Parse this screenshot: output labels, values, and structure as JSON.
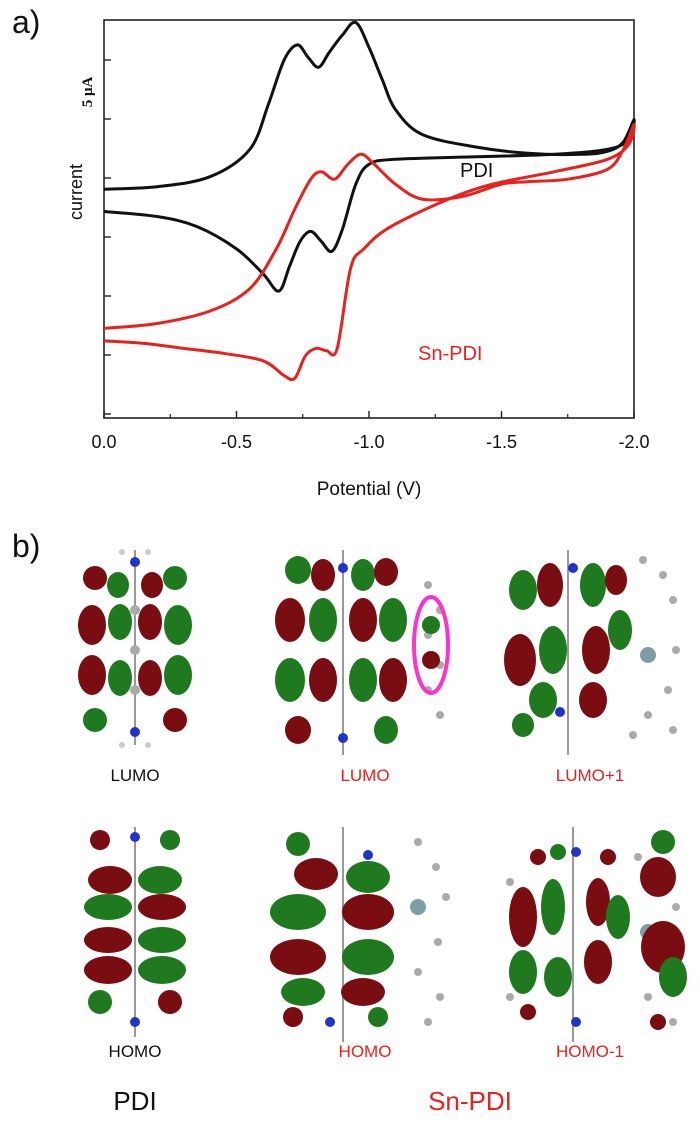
{
  "panel_a_label": "a)",
  "panel_b_label": "b)",
  "colors": {
    "pdi": "#111111",
    "snpdi": "#e8211d",
    "lobe_red": "#7a0d12",
    "lobe_green": "#1f7a1f",
    "atom_grey": "#9a9a9a",
    "nitrogen": "#2233cc",
    "tin": "#7f9ea3",
    "highlight": "#ff33cc"
  },
  "chart_data": {
    "type": "line",
    "title": "",
    "xlabel": "Potential (V)",
    "ylabel": "current",
    "scale_bar_label": "5 μA",
    "xlim": [
      0.0,
      -2.0
    ],
    "x_ticks": [
      "0.0",
      "-0.5",
      "-1.0",
      "-1.5",
      "-2.0"
    ],
    "x_tick_values": [
      0.0,
      -0.5,
      -1.0,
      -1.5,
      -2.0
    ],
    "ylim": [
      -4.6,
      3.4
    ],
    "series": [
      {
        "name": "PDI",
        "label": "PDI",
        "color": "#111111",
        "x": [
          0.0,
          -0.2,
          -0.4,
          -0.55,
          -0.62,
          -0.68,
          -0.73,
          -0.77,
          -0.81,
          -0.85,
          -0.9,
          -0.95,
          -1.0,
          -1.05,
          -1.1,
          -1.2,
          -1.4,
          -1.6,
          -1.8,
          -1.9,
          -1.96,
          -2.0,
          -1.98,
          -1.9,
          -1.7,
          -1.4,
          -1.1,
          -1.0,
          -0.95,
          -0.9,
          -0.86,
          -0.82,
          -0.78,
          -0.74,
          -0.7,
          -0.66,
          -0.6,
          -0.5,
          -0.35,
          -0.2,
          0.0
        ],
        "y": [
          0.0,
          0.05,
          0.25,
          0.8,
          1.7,
          2.6,
          2.9,
          2.65,
          2.45,
          2.75,
          3.1,
          3.35,
          2.85,
          2.2,
          1.6,
          1.1,
          0.85,
          0.72,
          0.7,
          0.76,
          0.95,
          1.4,
          1.0,
          0.8,
          0.7,
          0.65,
          0.6,
          0.5,
          0.1,
          -0.8,
          -1.25,
          -1.05,
          -0.85,
          -1.05,
          -1.55,
          -2.05,
          -1.7,
          -1.2,
          -0.75,
          -0.55,
          -0.45
        ]
      },
      {
        "name": "Sn-PDI",
        "label": "Sn-PDI",
        "color": "#e8211d",
        "x": [
          0.0,
          -0.2,
          -0.4,
          -0.55,
          -0.65,
          -0.72,
          -0.78,
          -0.82,
          -0.87,
          -0.92,
          -0.97,
          -1.02,
          -1.1,
          -1.2,
          -1.35,
          -1.5,
          -1.6,
          -1.75,
          -1.9,
          -1.96,
          -2.0,
          -1.98,
          -1.9,
          -1.7,
          -1.4,
          -1.1,
          -0.98,
          -0.93,
          -0.88,
          -0.84,
          -0.8,
          -0.76,
          -0.72,
          -0.68,
          -0.6,
          -0.45,
          -0.3,
          -0.15,
          0.0
        ],
        "y": [
          -2.8,
          -2.7,
          -2.45,
          -2.0,
          -1.2,
          -0.4,
          0.2,
          0.35,
          0.2,
          0.5,
          0.7,
          0.5,
          0.1,
          -0.2,
          -0.15,
          0.1,
          0.15,
          0.2,
          0.4,
          0.8,
          1.3,
          0.9,
          0.6,
          0.35,
          0.0,
          -0.7,
          -1.2,
          -1.6,
          -3.2,
          -3.25,
          -3.2,
          -3.35,
          -3.8,
          -3.75,
          -3.45,
          -3.3,
          -3.2,
          -3.1,
          -3.05
        ]
      }
    ]
  },
  "orbitals": {
    "pdi_lumo": "LUMO",
    "snpdi_lumo": "LUMO",
    "snpdi_lumo1": "LUMO+1",
    "pdi_homo": "HOMO",
    "snpdi_homo": "HOMO",
    "snpdi_homo1": "HOMO-1"
  },
  "groups": {
    "pdi": "PDI",
    "snpdi": "Sn-PDI"
  }
}
